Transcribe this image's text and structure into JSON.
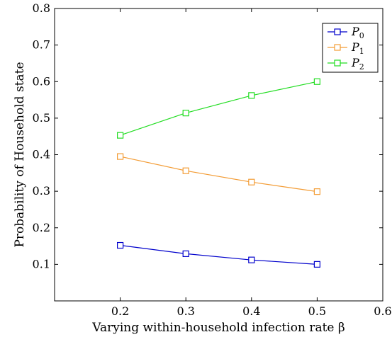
{
  "chart_data": {
    "type": "line",
    "title": "",
    "xlabel": "Varying within-household infection rate β",
    "ylabel": "Probability of Household state",
    "xlim": [
      0.1,
      0.6
    ],
    "ylim": [
      0.0,
      0.8
    ],
    "xticks": [
      "0.2",
      "0.3",
      "0.4",
      "0.5",
      "0.6"
    ],
    "yticks": [
      "0.1",
      "0.2",
      "0.3",
      "0.4",
      "0.5",
      "0.6",
      "0.7",
      "0.8"
    ],
    "x": [
      0.2,
      0.3,
      0.4,
      0.5
    ],
    "grid": false,
    "legend_position": "top-right",
    "series": [
      {
        "name": "P",
        "subscript": "0",
        "color": "#0000cc",
        "marker": "square",
        "values": [
          0.152,
          0.129,
          0.112,
          0.1
        ]
      },
      {
        "name": "P",
        "subscript": "1",
        "color": "#f39c35",
        "marker": "square",
        "values": [
          0.395,
          0.356,
          0.325,
          0.299
        ]
      },
      {
        "name": "P",
        "subscript": "2",
        "color": "#22dd22",
        "marker": "square",
        "values": [
          0.453,
          0.514,
          0.562,
          0.6
        ]
      }
    ]
  }
}
